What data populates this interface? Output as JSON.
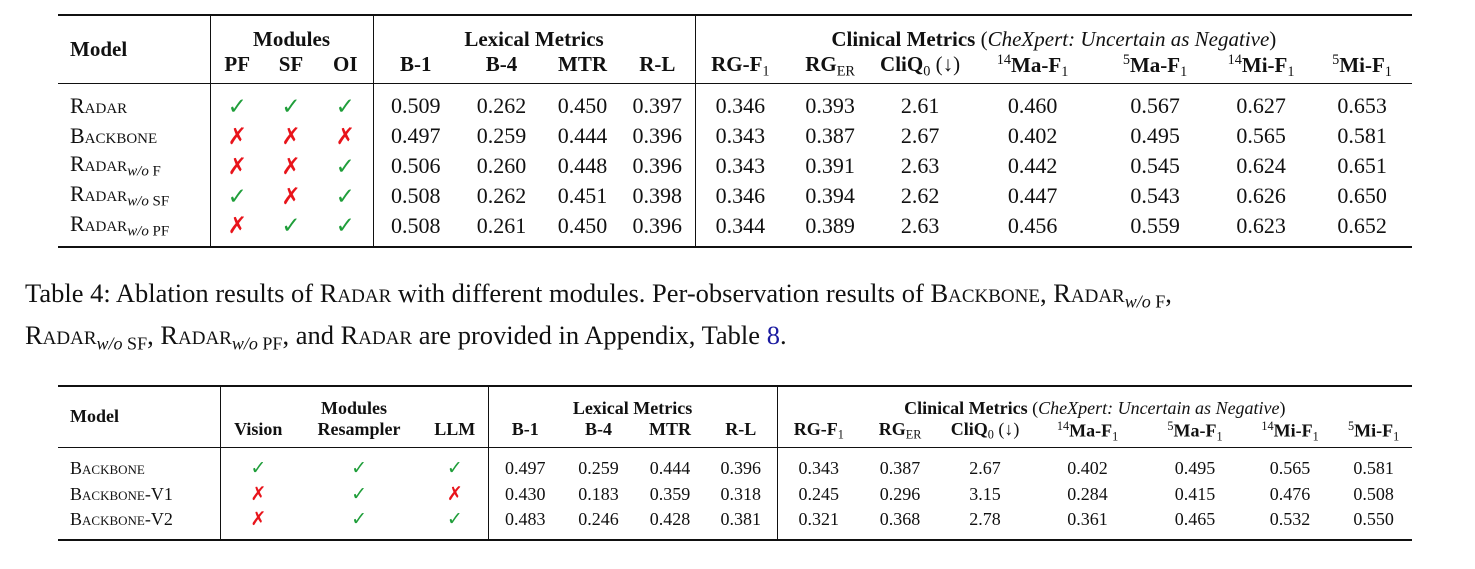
{
  "table1": {
    "model_header": [
      {
        "s": "b",
        "t": "Model"
      }
    ],
    "groups": [
      {
        "label": [
          {
            "s": "b",
            "t": "Modules"
          }
        ],
        "columns": [
          [
            {
              "s": "b",
              "t": "PF"
            }
          ],
          [
            {
              "s": "b",
              "t": "SF"
            }
          ],
          [
            {
              "s": "b",
              "t": "OI"
            }
          ]
        ]
      },
      {
        "label": [
          {
            "s": "b",
            "t": "Lexical Metrics"
          }
        ],
        "columns": [
          [
            {
              "s": "b",
              "t": "B-1"
            }
          ],
          [
            {
              "s": "b",
              "t": "B-4"
            }
          ],
          [
            {
              "s": "b",
              "t": "MTR"
            }
          ],
          [
            {
              "s": "b",
              "t": "R-L"
            }
          ]
        ]
      },
      {
        "label": [
          {
            "s": "b",
            "t": "Clinical Metrics"
          },
          {
            "s": "n",
            "t": " ("
          },
          {
            "s": "i",
            "t": "CheXpert: Uncertain as Negative"
          },
          {
            "s": "n",
            "t": ")"
          }
        ],
        "columns": [
          [
            {
              "s": "b",
              "t": "RG-F"
            },
            {
              "s": "sub",
              "t": "1"
            }
          ],
          [
            {
              "s": "b",
              "t": "RG"
            },
            {
              "s": "sub",
              "t": "ER"
            }
          ],
          [
            {
              "s": "b",
              "t": "CliQ"
            },
            {
              "s": "sub",
              "t": "0"
            },
            {
              "s": "n",
              "t": " (↓)"
            }
          ],
          [
            {
              "s": "sup",
              "t": "14"
            },
            {
              "s": "b",
              "t": "Ma-F"
            },
            {
              "s": "sub",
              "t": "1"
            }
          ],
          [
            {
              "s": "sup",
              "t": "5"
            },
            {
              "s": "b",
              "t": "Ma-F"
            },
            {
              "s": "sub",
              "t": "1"
            }
          ],
          [
            {
              "s": "sup",
              "t": "14"
            },
            {
              "s": "b",
              "t": "Mi-F"
            },
            {
              "s": "sub",
              "t": "1"
            }
          ],
          [
            {
              "s": "sup",
              "t": "5"
            },
            {
              "s": "b",
              "t": "Mi-F"
            },
            {
              "s": "sub",
              "t": "1"
            }
          ]
        ]
      }
    ],
    "rows": [
      {
        "model": [
          {
            "s": "sc",
            "t": "Radar"
          }
        ],
        "cells": [
          {
            "t": "✓",
            "color": "#1f9e3a"
          },
          {
            "t": "✓",
            "color": "#1f9e3a"
          },
          {
            "t": "✓",
            "color": "#1f9e3a"
          },
          "0.509",
          "0.262",
          "0.450",
          "0.397",
          "0.346",
          "0.393",
          "2.61",
          "0.460",
          "0.567",
          "0.627",
          "0.653"
        ]
      },
      {
        "model": [
          {
            "s": "sc",
            "t": "Backbone"
          }
        ],
        "cells": [
          {
            "t": "✗",
            "color": "#e8141b"
          },
          {
            "t": "✗",
            "color": "#e8141b"
          },
          {
            "t": "✗",
            "color": "#e8141b"
          },
          "0.497",
          "0.259",
          "0.444",
          "0.396",
          "0.343",
          "0.387",
          "2.67",
          "0.402",
          "0.495",
          "0.565",
          "0.581"
        ]
      },
      {
        "model": [
          {
            "s": "sc",
            "t": "Radar"
          },
          {
            "s": "subi",
            "t": "w/o"
          },
          {
            "s": "sub",
            "t": " F"
          }
        ],
        "cells": [
          {
            "t": "✗",
            "color": "#e8141b"
          },
          {
            "t": "✗",
            "color": "#e8141b"
          },
          {
            "t": "✓",
            "color": "#1f9e3a"
          },
          "0.506",
          "0.260",
          "0.448",
          "0.396",
          "0.343",
          "0.391",
          "2.63",
          "0.442",
          "0.545",
          "0.624",
          "0.651"
        ]
      },
      {
        "model": [
          {
            "s": "sc",
            "t": "Radar"
          },
          {
            "s": "subi",
            "t": "w/o"
          },
          {
            "s": "sub",
            "t": " SF"
          }
        ],
        "cells": [
          {
            "t": "✓",
            "color": "#1f9e3a"
          },
          {
            "t": "✗",
            "color": "#e8141b"
          },
          {
            "t": "✓",
            "color": "#1f9e3a"
          },
          "0.508",
          "0.262",
          "0.451",
          "0.398",
          "0.346",
          "0.394",
          "2.62",
          "0.447",
          "0.543",
          "0.626",
          "0.650"
        ]
      },
      {
        "model": [
          {
            "s": "sc",
            "t": "Radar"
          },
          {
            "s": "subi",
            "t": "w/o"
          },
          {
            "s": "sub",
            "t": " PF"
          }
        ],
        "cells": [
          {
            "t": "✗",
            "color": "#e8141b"
          },
          {
            "t": "✓",
            "color": "#1f9e3a"
          },
          {
            "t": "✓",
            "color": "#1f9e3a"
          },
          "0.508",
          "0.261",
          "0.450",
          "0.396",
          "0.344",
          "0.389",
          "2.63",
          "0.456",
          "0.559",
          "0.623",
          "0.652"
        ]
      }
    ]
  },
  "caption": [
    {
      "s": "n",
      "t": "Table 4: Ablation results of "
    },
    {
      "s": "sc",
      "t": "Radar"
    },
    {
      "s": "n",
      "t": " with different modules. Per-observation results of "
    },
    {
      "s": "sc",
      "t": "Backbone"
    },
    {
      "s": "n",
      "t": ", "
    },
    {
      "s": "sc",
      "t": "Radar"
    },
    {
      "s": "subi",
      "t": "w/o"
    },
    {
      "s": "sub",
      "t": " F"
    },
    {
      "s": "n",
      "t": ","
    },
    {
      "s": "br",
      "t": ""
    },
    {
      "s": "sc",
      "t": "Radar"
    },
    {
      "s": "subi",
      "t": "w/o"
    },
    {
      "s": "sub",
      "t": " SF"
    },
    {
      "s": "n",
      "t": ", "
    },
    {
      "s": "sc",
      "t": "Radar"
    },
    {
      "s": "subi",
      "t": "w/o"
    },
    {
      "s": "sub",
      "t": " PF"
    },
    {
      "s": "n",
      "t": ", and "
    },
    {
      "s": "sc",
      "t": "Radar"
    },
    {
      "s": "n",
      "t": " are provided in Appendix, Table "
    },
    {
      "s": "link",
      "t": "8"
    },
    {
      "s": "n",
      "t": "."
    }
  ],
  "table2": {
    "model_header": [
      {
        "s": "b",
        "t": "Model"
      }
    ],
    "groups": [
      {
        "label": [
          {
            "s": "b",
            "t": "Modules"
          }
        ],
        "columns": [
          [
            {
              "s": "b",
              "t": "Vision"
            }
          ],
          [
            {
              "s": "b",
              "t": "Resampler"
            }
          ],
          [
            {
              "s": "b",
              "t": "LLM"
            }
          ]
        ]
      },
      {
        "label": [
          {
            "s": "b",
            "t": "Lexical Metrics"
          }
        ],
        "columns": [
          [
            {
              "s": "b",
              "t": "B-1"
            }
          ],
          [
            {
              "s": "b",
              "t": "B-4"
            }
          ],
          [
            {
              "s": "b",
              "t": "MTR"
            }
          ],
          [
            {
              "s": "b",
              "t": "R-L"
            }
          ]
        ]
      },
      {
        "label": [
          {
            "s": "b",
            "t": "Clinical Metrics"
          },
          {
            "s": "n",
            "t": " ("
          },
          {
            "s": "i",
            "t": "CheXpert: Uncertain as Negative"
          },
          {
            "s": "n",
            "t": ")"
          }
        ],
        "columns": [
          [
            {
              "s": "b",
              "t": "RG-F"
            },
            {
              "s": "sub",
              "t": "1"
            }
          ],
          [
            {
              "s": "b",
              "t": "RG"
            },
            {
              "s": "sub",
              "t": "ER"
            }
          ],
          [
            {
              "s": "b",
              "t": "CliQ"
            },
            {
              "s": "sub",
              "t": "0"
            },
            {
              "s": "n",
              "t": " (↓)"
            }
          ],
          [
            {
              "s": "sup",
              "t": "14"
            },
            {
              "s": "b",
              "t": "Ma-F"
            },
            {
              "s": "sub",
              "t": "1"
            }
          ],
          [
            {
              "s": "sup",
              "t": "5"
            },
            {
              "s": "b",
              "t": "Ma-F"
            },
            {
              "s": "sub",
              "t": "1"
            }
          ],
          [
            {
              "s": "sup",
              "t": "14"
            },
            {
              "s": "b",
              "t": "Mi-F"
            },
            {
              "s": "sub",
              "t": "1"
            }
          ],
          [
            {
              "s": "sup",
              "t": "5"
            },
            {
              "s": "b",
              "t": "Mi-F"
            },
            {
              "s": "sub",
              "t": "1"
            }
          ]
        ]
      }
    ],
    "rows": [
      {
        "model": [
          {
            "s": "sc",
            "t": "Backbone"
          }
        ],
        "cells": [
          {
            "t": "✓",
            "color": "#1f9e3a"
          },
          {
            "t": "✓",
            "color": "#1f9e3a"
          },
          {
            "t": "✓",
            "color": "#1f9e3a"
          },
          "0.497",
          "0.259",
          "0.444",
          "0.396",
          "0.343",
          "0.387",
          "2.67",
          "0.402",
          "0.495",
          "0.565",
          "0.581"
        ]
      },
      {
        "model": [
          {
            "s": "sc",
            "t": "Backbone-V1"
          }
        ],
        "cells": [
          {
            "t": "✗",
            "color": "#e8141b"
          },
          {
            "t": "✓",
            "color": "#1f9e3a"
          },
          {
            "t": "✗",
            "color": "#e8141b"
          },
          "0.430",
          "0.183",
          "0.359",
          "0.318",
          "0.245",
          "0.296",
          "3.15",
          "0.284",
          "0.415",
          "0.476",
          "0.508"
        ]
      },
      {
        "model": [
          {
            "s": "sc",
            "t": "Backbone-V2"
          }
        ],
        "cells": [
          {
            "t": "✗",
            "color": "#e8141b"
          },
          {
            "t": "✓",
            "color": "#1f9e3a"
          },
          {
            "t": "✓",
            "color": "#1f9e3a"
          },
          "0.483",
          "0.246",
          "0.428",
          "0.381",
          "0.321",
          "0.368",
          "2.78",
          "0.361",
          "0.465",
          "0.532",
          "0.550"
        ]
      }
    ]
  }
}
